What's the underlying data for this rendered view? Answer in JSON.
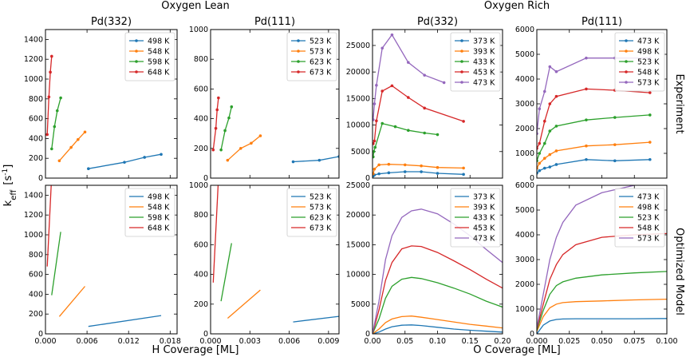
{
  "figure": {
    "group_titles": [
      "Oxygen Lean",
      "Oxygen Rich"
    ],
    "row_labels": [
      "Experiment",
      "Optimized Model"
    ],
    "ylabel": "k_eff [s^-1]",
    "xlabels": [
      "H Coverage [ML]",
      "O Coverage [ML]"
    ]
  },
  "chart_data": [
    {
      "id": "lean-pd332-exp",
      "type": "line",
      "title": "Pd(332)",
      "markers": true,
      "xlim": [
        0,
        0.019
      ],
      "ylim": [
        0,
        1500
      ],
      "xticks": [
        0.0,
        0.006,
        0.012,
        0.018
      ],
      "yticks": [
        0,
        200,
        400,
        600,
        800,
        1000,
        1200,
        1400
      ],
      "legend": "top-right",
      "series": [
        {
          "name": "498 K",
          "color": "#1f77b4",
          "x": [
            0.0062,
            0.0114,
            0.0143,
            0.0167
          ],
          "y": [
            95,
            160,
            210,
            240
          ]
        },
        {
          "name": "548 K",
          "color": "#ff7f0e",
          "x": [
            0.002,
            0.0037,
            0.0047,
            0.0057
          ],
          "y": [
            175,
            310,
            390,
            465
          ]
        },
        {
          "name": "598 K",
          "color": "#2ca02c",
          "x": [
            0.0009,
            0.0013,
            0.0017,
            0.0022
          ],
          "y": [
            295,
            520,
            680,
            810
          ]
        },
        {
          "name": "648 K",
          "color": "#d62728",
          "x": [
            0.00025,
            0.0005,
            0.0007,
            0.0009
          ],
          "y": [
            440,
            820,
            1070,
            1230
          ]
        }
      ]
    },
    {
      "id": "lean-pd111-exp",
      "type": "line",
      "title": "Pd(111)",
      "markers": true,
      "xlim": [
        0,
        0.0098
      ],
      "ylim": [
        0,
        1000
      ],
      "xticks": [
        0.0,
        0.003,
        0.006,
        0.009
      ],
      "yticks": [
        0,
        200,
        400,
        600,
        800,
        1000
      ],
      "legend": "top-right",
      "series": [
        {
          "name": "523 K",
          "color": "#1f77b4",
          "x": [
            0.0063,
            0.0083,
            0.0098
          ],
          "y": [
            110,
            120,
            145
          ]
        },
        {
          "name": "573 K",
          "color": "#ff7f0e",
          "x": [
            0.0013,
            0.0023,
            0.0031,
            0.0038
          ],
          "y": [
            120,
            200,
            235,
            285
          ]
        },
        {
          "name": "623 K",
          "color": "#2ca02c",
          "x": [
            0.0008,
            0.0011,
            0.0014,
            0.0016
          ],
          "y": [
            190,
            320,
            405,
            480
          ]
        },
        {
          "name": "673 K",
          "color": "#d62728",
          "x": [
            0.0002,
            0.0004,
            0.0005,
            0.0006
          ],
          "y": [
            190,
            335,
            460,
            540
          ]
        }
      ]
    },
    {
      "id": "rich-pd332-exp",
      "type": "line",
      "title": "Pd(332)",
      "markers": true,
      "xlim": [
        0,
        0.2
      ],
      "ylim": [
        0,
        28000
      ],
      "xticks": [
        0.0,
        0.05,
        0.1,
        0.15,
        0.2
      ],
      "yticks": [
        0,
        5000,
        10000,
        15000,
        20000,
        25000
      ],
      "legend": "top-right",
      "series": [
        {
          "name": "373 K",
          "color": "#1f77b4",
          "x": [
            0.001,
            0.003,
            0.01,
            0.025,
            0.05,
            0.075,
            0.1,
            0.14
          ],
          "y": [
            400,
            600,
            800,
            1000,
            1200,
            1200,
            900,
            700
          ]
        },
        {
          "name": "393 K",
          "color": "#ff7f0e",
          "x": [
            0.001,
            0.003,
            0.01,
            0.025,
            0.05,
            0.075,
            0.1,
            0.14
          ],
          "y": [
            800,
            1700,
            2500,
            2600,
            2500,
            2300,
            2000,
            1900
          ]
        },
        {
          "name": "433 K",
          "color": "#2ca02c",
          "x": [
            0.001,
            0.002,
            0.004,
            0.015,
            0.035,
            0.055,
            0.08,
            0.1
          ],
          "y": [
            4000,
            5000,
            5800,
            10300,
            9700,
            9000,
            8500,
            8200
          ]
        },
        {
          "name": "453 K",
          "color": "#d62728",
          "x": [
            0.001,
            0.003,
            0.006,
            0.015,
            0.03,
            0.055,
            0.08,
            0.14
          ],
          "y": [
            6500,
            7000,
            10800,
            16400,
            17400,
            15200,
            13200,
            10700
          ]
        },
        {
          "name": "473 K",
          "color": "#9467bd",
          "x": [
            0.001,
            0.003,
            0.006,
            0.015,
            0.03,
            0.055,
            0.08,
            0.11
          ],
          "y": [
            11000,
            14000,
            17500,
            24500,
            27000,
            21800,
            19400,
            18000
          ]
        }
      ]
    },
    {
      "id": "rich-pd111-exp",
      "type": "line",
      "title": "Pd(111)",
      "markers": true,
      "xlim": [
        0,
        0.1
      ],
      "ylim": [
        0,
        6000
      ],
      "xticks": [
        0.0,
        0.025,
        0.05,
        0.075,
        0.1
      ],
      "yticks": [
        0,
        1000,
        2000,
        3000,
        4000,
        5000,
        6000
      ],
      "legend": "top-right",
      "series": [
        {
          "name": "473 K",
          "color": "#1f77b4",
          "x": [
            0.0,
            0.002,
            0.006,
            0.01,
            0.015,
            0.038,
            0.06,
            0.087
          ],
          "y": [
            200,
            300,
            400,
            450,
            550,
            750,
            700,
            750
          ]
        },
        {
          "name": "498 K",
          "color": "#ff7f0e",
          "x": [
            0.0,
            0.002,
            0.006,
            0.01,
            0.015,
            0.038,
            0.06,
            0.087
          ],
          "y": [
            400,
            600,
            800,
            950,
            1100,
            1300,
            1350,
            1450
          ]
        },
        {
          "name": "523 K",
          "color": "#2ca02c",
          "x": [
            0.0,
            0.002,
            0.006,
            0.01,
            0.015,
            0.038,
            0.06,
            0.087
          ],
          "y": [
            700,
            1000,
            1400,
            1900,
            2100,
            2350,
            2450,
            2550
          ]
        },
        {
          "name": "548 K",
          "color": "#d62728",
          "x": [
            0.0,
            0.002,
            0.006,
            0.01,
            0.015,
            0.038,
            0.06,
            0.087
          ],
          "y": [
            1200,
            1400,
            2300,
            3000,
            3300,
            3600,
            3550,
            3450
          ]
        },
        {
          "name": "573 K",
          "color": "#9467bd",
          "x": [
            0.0,
            0.002,
            0.006,
            0.01,
            0.015,
            0.038,
            0.06,
            0.087
          ],
          "y": [
            1800,
            2800,
            3500,
            4500,
            4300,
            4850,
            4850,
            4850
          ]
        }
      ]
    },
    {
      "id": "lean-pd332-model",
      "type": "line",
      "title": "",
      "markers": false,
      "xlim": [
        0,
        0.019
      ],
      "ylim": [
        0,
        1500
      ],
      "xticks": [
        0.0,
        0.006,
        0.012,
        0.018
      ],
      "yticks": [
        0,
        200,
        400,
        600,
        800,
        1000,
        1200,
        1400
      ],
      "legend": "top-right",
      "series": [
        {
          "name": "498 K",
          "color": "#1f77b4",
          "x": [
            0.0062,
            0.0167
          ],
          "y": [
            75,
            185
          ]
        },
        {
          "name": "548 K",
          "color": "#ff7f0e",
          "x": [
            0.002,
            0.0057
          ],
          "y": [
            175,
            480
          ]
        },
        {
          "name": "598 K",
          "color": "#2ca02c",
          "x": [
            0.0009,
            0.0022
          ],
          "y": [
            390,
            1030
          ]
        },
        {
          "name": "648 K",
          "color": "#d62728",
          "x": [
            0.00025,
            0.0009
          ],
          "y": [
            680,
            1600
          ]
        }
      ]
    },
    {
      "id": "lean-pd111-model",
      "type": "line",
      "title": "",
      "markers": false,
      "xlim": [
        0,
        0.0098
      ],
      "ylim": [
        0,
        1000
      ],
      "xticks": [
        0.0,
        0.003,
        0.006,
        0.009
      ],
      "yticks": [
        0,
        200,
        400,
        600,
        800,
        1000
      ],
      "legend": "top-right",
      "series": [
        {
          "name": "523 K",
          "color": "#1f77b4",
          "x": [
            0.0063,
            0.0098
          ],
          "y": [
            80,
            118
          ]
        },
        {
          "name": "573 K",
          "color": "#ff7f0e",
          "x": [
            0.0013,
            0.0038
          ],
          "y": [
            105,
            295
          ]
        },
        {
          "name": "623 K",
          "color": "#2ca02c",
          "x": [
            0.0008,
            0.0016
          ],
          "y": [
            220,
            610
          ]
        },
        {
          "name": "673 K",
          "color": "#d62728",
          "x": [
            0.0002,
            0.0006
          ],
          "y": [
            345,
            1050
          ]
        }
      ]
    },
    {
      "id": "rich-pd332-model",
      "type": "line",
      "title": "",
      "markers": false,
      "xlim": [
        0,
        0.2
      ],
      "ylim": [
        0,
        25000
      ],
      "xticks": [
        0.0,
        0.05,
        0.1,
        0.15,
        0.2
      ],
      "yticks": [
        0,
        5000,
        10000,
        15000,
        20000,
        25000
      ],
      "legend": "top-right",
      "series": [
        {
          "name": "373 K",
          "color": "#1f77b4",
          "x": [
            0,
            0.01,
            0.02,
            0.03,
            0.045,
            0.06,
            0.075,
            0.1,
            0.125,
            0.15,
            0.175,
            0.2
          ],
          "y": [
            0,
            300,
            800,
            1200,
            1450,
            1500,
            1400,
            1100,
            800,
            600,
            450,
            300
          ]
        },
        {
          "name": "393 K",
          "color": "#ff7f0e",
          "x": [
            0,
            0.01,
            0.02,
            0.03,
            0.045,
            0.06,
            0.075,
            0.1,
            0.125,
            0.15,
            0.175,
            0.2
          ],
          "y": [
            0,
            800,
            1900,
            2500,
            2900,
            3000,
            2800,
            2400,
            2000,
            1600,
            1300,
            1000
          ]
        },
        {
          "name": "433 K",
          "color": "#2ca02c",
          "x": [
            0,
            0.01,
            0.02,
            0.03,
            0.045,
            0.06,
            0.075,
            0.1,
            0.125,
            0.15,
            0.175,
            0.2
          ],
          "y": [
            0,
            2500,
            6000,
            8000,
            9200,
            9500,
            9300,
            8600,
            7700,
            6700,
            5500,
            4500
          ]
        },
        {
          "name": "453 K",
          "color": "#d62728",
          "x": [
            0,
            0.01,
            0.02,
            0.03,
            0.045,
            0.06,
            0.075,
            0.1,
            0.125,
            0.15,
            0.175,
            0.2
          ],
          "y": [
            0,
            4000,
            9000,
            12000,
            14300,
            14800,
            14700,
            13700,
            12300,
            10800,
            9200,
            7700
          ]
        },
        {
          "name": "473 K",
          "color": "#9467bd",
          "x": [
            0,
            0.01,
            0.02,
            0.03,
            0.045,
            0.06,
            0.075,
            0.1,
            0.125,
            0.15,
            0.175,
            0.2
          ],
          "y": [
            0,
            5500,
            12500,
            16500,
            19600,
            20700,
            21000,
            20200,
            18500,
            16500,
            14200,
            12000
          ]
        }
      ]
    },
    {
      "id": "rich-pd111-model",
      "type": "line",
      "title": "",
      "markers": false,
      "xlim": [
        0,
        0.1
      ],
      "ylim": [
        0,
        6000
      ],
      "xticks": [
        0.0,
        0.025,
        0.05,
        0.075,
        0.1
      ],
      "yticks": [
        0,
        1000,
        2000,
        3000,
        4000,
        5000,
        6000
      ],
      "legend": "top-right",
      "series": [
        {
          "name": "473 K",
          "color": "#1f77b4",
          "x": [
            0,
            0.005,
            0.01,
            0.015,
            0.02,
            0.03,
            0.05,
            0.075,
            0.1
          ],
          "y": [
            0,
            350,
            520,
            580,
            600,
            610,
            610,
            610,
            620
          ]
        },
        {
          "name": "498 K",
          "color": "#ff7f0e",
          "x": [
            0,
            0.005,
            0.01,
            0.015,
            0.02,
            0.03,
            0.05,
            0.075,
            0.1
          ],
          "y": [
            100,
            700,
            1050,
            1200,
            1260,
            1300,
            1330,
            1370,
            1400
          ]
        },
        {
          "name": "523 K",
          "color": "#2ca02c",
          "x": [
            0,
            0.005,
            0.01,
            0.015,
            0.02,
            0.03,
            0.05,
            0.075,
            0.1
          ],
          "y": [
            150,
            950,
            1600,
            1950,
            2100,
            2250,
            2380,
            2460,
            2520
          ]
        },
        {
          "name": "548 K",
          "color": "#d62728",
          "x": [
            0,
            0.005,
            0.01,
            0.015,
            0.02,
            0.03,
            0.05,
            0.075,
            0.1
          ],
          "y": [
            200,
            1200,
            2200,
            2800,
            3200,
            3600,
            3900,
            4000,
            4050
          ]
        },
        {
          "name": "573 K",
          "color": "#9467bd",
          "x": [
            0,
            0.005,
            0.01,
            0.015,
            0.02,
            0.03,
            0.05,
            0.075,
            0.1
          ],
          "y": [
            250,
            1600,
            3000,
            3900,
            4500,
            5200,
            5700,
            6000,
            6200
          ]
        }
      ]
    }
  ]
}
